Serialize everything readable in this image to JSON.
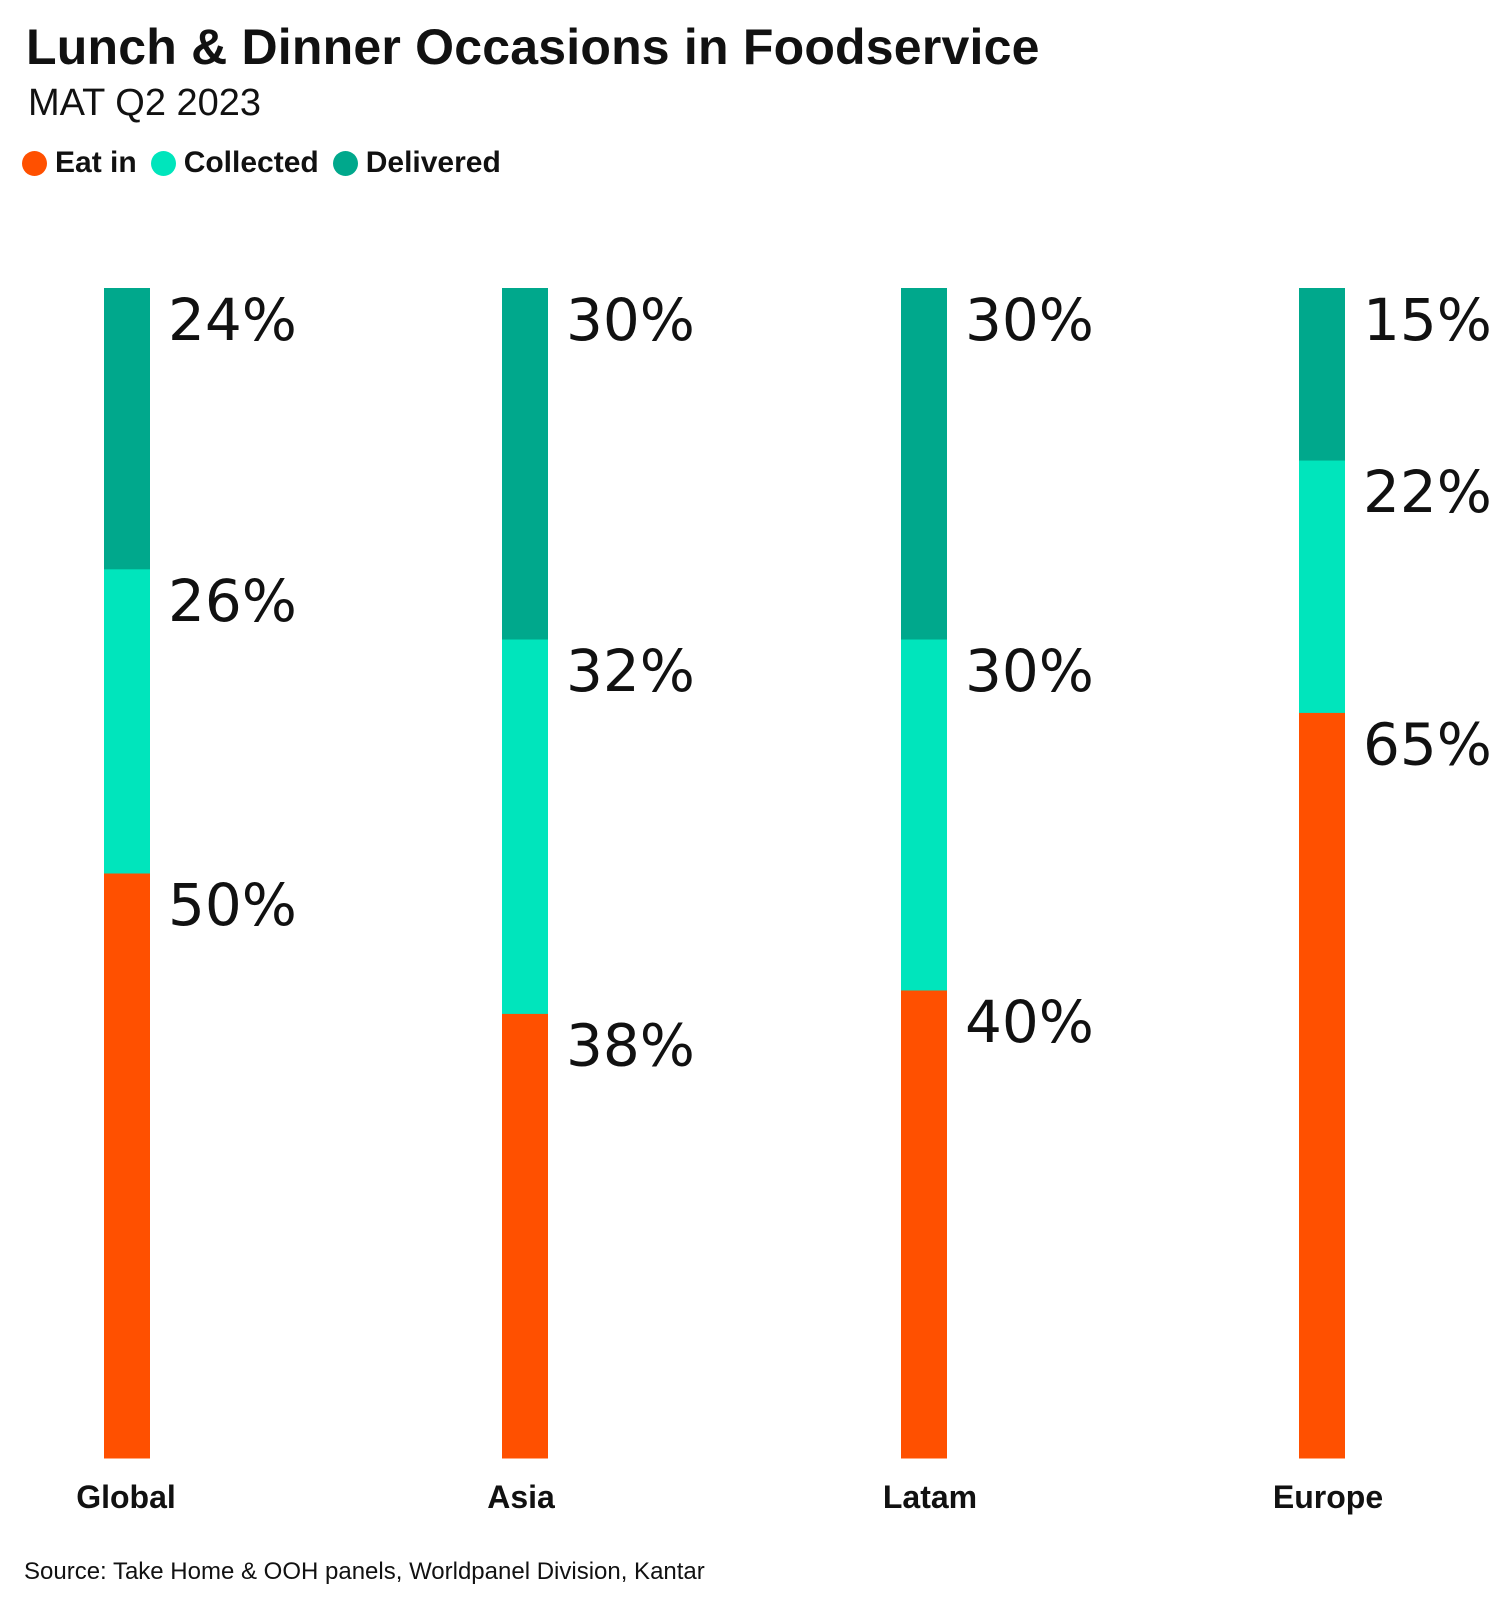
{
  "chart_data": {
    "type": "bar",
    "stacked": true,
    "orientation": "vertical",
    "title": "Lunch & Dinner Occasions in Foodservice",
    "subtitle": "MAT Q2 2023",
    "categories": [
      "Global",
      "Asia",
      "Latam",
      "Europe"
    ],
    "series": [
      {
        "name": "Eat in",
        "color": "#FF5000",
        "values": [
          50,
          38,
          40,
          65
        ],
        "labels": [
          "50%",
          "38%",
          "40%",
          "65%"
        ]
      },
      {
        "name": "Collected",
        "color": "#00E5BC",
        "values": [
          26,
          32,
          30,
          22
        ],
        "labels": [
          "26%",
          "32%",
          "30%",
          "22%"
        ]
      },
      {
        "name": "Delivered",
        "color": "#00A88C",
        "values": [
          24,
          30,
          30,
          15
        ],
        "labels": [
          "24%",
          "30%",
          "30%",
          "15%"
        ]
      }
    ],
    "legend": {
      "position": "top-left"
    },
    "grid": false,
    "axes_visible": false,
    "source": "Source: Take Home & OOH panels, Worldpanel Division, Kantar"
  }
}
